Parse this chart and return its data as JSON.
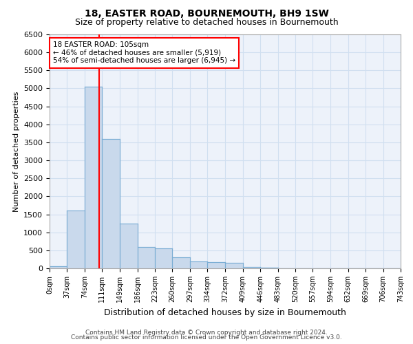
{
  "title": "18, EASTER ROAD, BOURNEMOUTH, BH9 1SW",
  "subtitle": "Size of property relative to detached houses in Bournemouth",
  "xlabel": "Distribution of detached houses by size in Bournemouth",
  "ylabel": "Number of detached properties",
  "footer_line1": "Contains HM Land Registry data © Crown copyright and database right 2024.",
  "footer_line2": "Contains public sector information licensed under the Open Government Licence v3.0.",
  "bar_color": "#c9d9ec",
  "bar_edge_color": "#7aadd4",
  "property_sqm": 105,
  "annotation_line1": "18 EASTER ROAD: 105sqm",
  "annotation_line2": "← 46% of detached houses are smaller (5,919)",
  "annotation_line3": "54% of semi-detached houses are larger (6,945) →",
  "annotation_box_color": "white",
  "annotation_box_edge_color": "red",
  "red_line_color": "red",
  "bin_edges": [
    0,
    37,
    74,
    111,
    149,
    186,
    223,
    260,
    297,
    334,
    372,
    409,
    446,
    483,
    520,
    557,
    594,
    632,
    669,
    706,
    743
  ],
  "bar_heights": [
    50,
    1600,
    5050,
    3600,
    1250,
    600,
    550,
    300,
    200,
    170,
    150,
    30,
    15,
    8,
    4,
    2,
    1,
    1,
    0,
    0
  ],
  "ylim": [
    0,
    6500
  ],
  "yticks": [
    0,
    500,
    1000,
    1500,
    2000,
    2500,
    3000,
    3500,
    4000,
    4500,
    5000,
    5500,
    6000,
    6500
  ],
  "background_color": "#edf2fa",
  "grid_color": "#d0dff0"
}
